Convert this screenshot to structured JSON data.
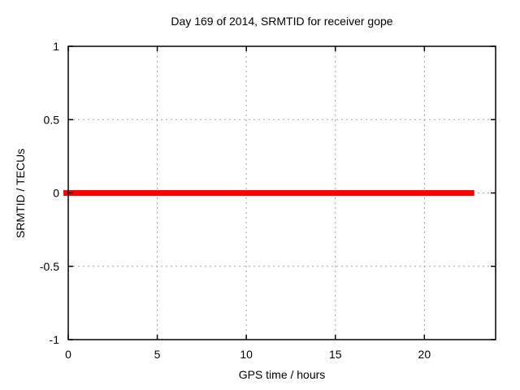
{
  "window": {
    "background": "#ffffff"
  },
  "chart_data": {
    "type": "line",
    "title": "Day 169 of 2014, SRMTID for receiver gope",
    "xlabel": "GPS time / hours",
    "ylabel": "SRMTID / TECUs",
    "xlim": [
      0,
      24
    ],
    "ylim": [
      -1,
      1
    ],
    "xticks": [
      0,
      5,
      10,
      15,
      20
    ],
    "yticks": [
      -1,
      -0.5,
      0,
      0.5,
      1
    ],
    "xtick_labels": [
      "0",
      "5",
      "10",
      "15",
      "20"
    ],
    "ytick_labels": [
      "-1",
      "-0.5",
      "0",
      "0.5",
      "1"
    ],
    "grid": true,
    "grid_style": "dashed",
    "legend_position": "none",
    "series": [
      {
        "name": "SRMTID",
        "color": "#ff0000",
        "x": [
          0,
          22.8
        ],
        "y": [
          0,
          0
        ],
        "description": "constant zero value across the day"
      }
    ]
  },
  "colors": {
    "grid": "#9e9e9e",
    "border": "#000000",
    "text": "#000000",
    "series": "#ff0000"
  }
}
